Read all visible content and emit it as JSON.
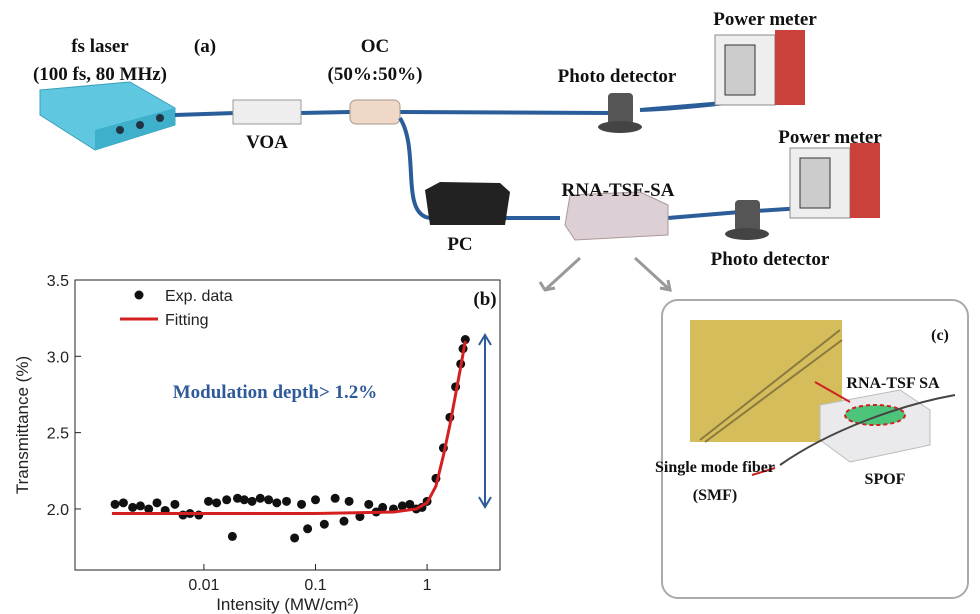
{
  "diagram": {
    "labels": [
      "fs laser",
      "(100 fs, 80 MHz)",
      "(a)",
      "VOA",
      "OC",
      "(50%:50%)",
      "Photo detector",
      "Power meter",
      "Power meter",
      "RNA-TSF-SA",
      "PC",
      "Photo detector",
      "(c)",
      "RNA-TSF SA",
      "Single mode fiber",
      "(SMF)",
      "SPOF"
    ]
  },
  "chart_data": {
    "type": "scatter",
    "panel_label": "(b)",
    "x_label": "Intensity (MW/cm²)",
    "y_label": "Transmittance (%)",
    "annotation": "Modulation depth> 1.2%",
    "log_x": true,
    "xlim": [
      0.0007,
      4.5
    ],
    "xticks": [
      0.01,
      0.1,
      1
    ],
    "ylim": [
      1.6,
      3.5
    ],
    "yticks": [
      {
        "value": 2,
        "label": "2.0"
      },
      2.5,
      {
        "value": 3,
        "label": "3.0"
      },
      3.5
    ],
    "series": [
      {
        "name": "Exp. data",
        "color": "#111111",
        "type": "scatter",
        "x": [
          0.0016,
          0.0019,
          0.0023,
          0.0027,
          0.0032,
          0.0038,
          0.0045,
          0.0055,
          0.0065,
          0.0075,
          0.009,
          0.011,
          0.013,
          0.016,
          0.018,
          0.02,
          0.023,
          0.027,
          0.032,
          0.038,
          0.045,
          0.055,
          0.065,
          0.075,
          0.085,
          0.1,
          0.12,
          0.15,
          0.18,
          0.2,
          0.25,
          0.3,
          0.35,
          0.4,
          0.5,
          0.6,
          0.7,
          0.8,
          0.9,
          1.0,
          1.2,
          1.4,
          1.6,
          1.8,
          2.0,
          2.1,
          2.2
        ],
        "values": [
          2.03,
          2.04,
          2.01,
          2.02,
          2.0,
          2.04,
          1.99,
          2.03,
          1.96,
          1.97,
          1.96,
          2.05,
          2.04,
          2.06,
          1.82,
          2.07,
          2.06,
          2.05,
          2.07,
          2.06,
          2.04,
          2.05,
          1.81,
          2.03,
          1.87,
          2.06,
          1.9,
          2.07,
          1.92,
          2.05,
          1.95,
          2.03,
          1.98,
          2.01,
          2.0,
          2.02,
          2.03,
          2.0,
          2.01,
          2.05,
          2.2,
          2.4,
          2.6,
          2.8,
          2.95,
          3.05,
          3.11
        ]
      },
      {
        "name": "Fitting",
        "color": "#d42020",
        "type": "line",
        "x": [
          0.0015,
          0.1,
          0.5,
          0.8,
          1.0,
          1.2,
          1.4,
          1.6,
          1.8,
          2.0,
          2.2
        ],
        "values": [
          1.97,
          1.97,
          1.98,
          2.0,
          2.04,
          2.15,
          2.35,
          2.55,
          2.75,
          2.93,
          3.1
        ]
      }
    ]
  }
}
